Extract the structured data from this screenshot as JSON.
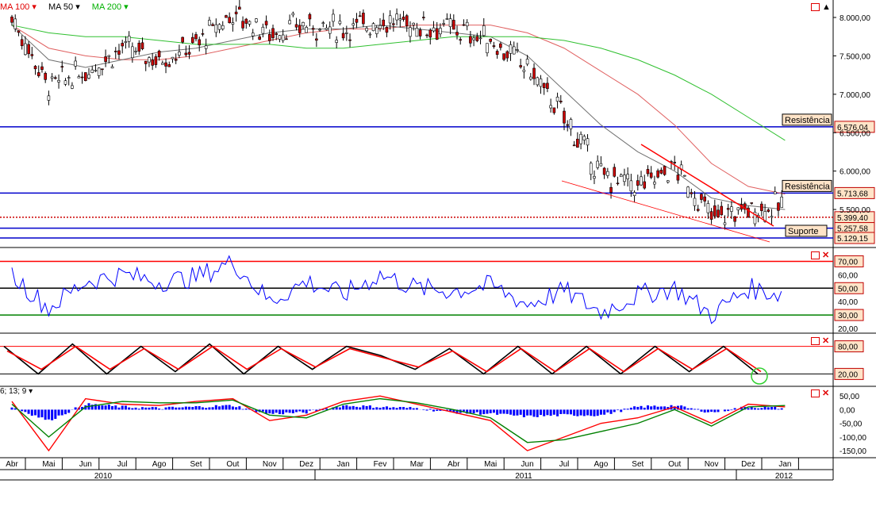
{
  "legend": {
    "ma100": "MA 100 ▾",
    "ma50": "MA 50 ▾",
    "ma200": "MA 200 ▾",
    "macd_params": "6; 13; 9 ▾"
  },
  "price_axis": {
    "ticks": [
      "8.000,00",
      "7.500,00",
      "7.000,00",
      "6.500,00",
      "6.000,00",
      "5.500,00"
    ],
    "levels": [
      {
        "name": "Resistência",
        "value": "6.576,04",
        "num": 6576.04,
        "color": "#0000cc"
      },
      {
        "name": "Resistência",
        "value": "5.713,68",
        "num": 5713.68,
        "color": "#0000cc"
      },
      {
        "name": "",
        "value": "5.399,40",
        "num": 5399.4,
        "color": "#cc0000"
      },
      {
        "name": "",
        "value": "5.257,58",
        "num": 5257.58,
        "color": "#0000cc"
      },
      {
        "name": "Suporte",
        "value": "5.129,15",
        "num": 5129.15,
        "color": "#0000cc"
      }
    ]
  },
  "rsi_axis": {
    "ticks": [
      "70,00",
      "60,00",
      "50,00",
      "40,00",
      "30,00",
      "20,00"
    ],
    "boxed": [
      "70,00",
      "50,00",
      "30,00"
    ]
  },
  "stoch_axis": {
    "ticks": [
      "80,00",
      "20,00"
    ]
  },
  "macd_axis": {
    "ticks": [
      "50,00",
      "0,00",
      "-50,00",
      "-100,00",
      "-150,00"
    ]
  },
  "time_axis": {
    "months": [
      "Abr",
      "Mai",
      "Jun",
      "Jul",
      "Ago",
      "Set",
      "Out",
      "Nov",
      "Dez",
      "Jan",
      "Fev",
      "Mar",
      "Abr",
      "Mai",
      "Jun",
      "Jul",
      "Ago",
      "Set",
      "Out",
      "Nov",
      "Dez",
      "Jan"
    ],
    "years": [
      "2010",
      "2011",
      "2012"
    ]
  },
  "colors": {
    "price_axis_bg": "#ffffff",
    "level_blue": "#0000cc",
    "trend_red": "#ff0000",
    "ma100": "#e06060",
    "ma50": "#707070",
    "ma200": "#30c030",
    "rsi": "#0000ff",
    "histogram": "#0000ff",
    "stoch_k": "#000000",
    "stoch_d": "#ff0000",
    "macd_fast": "#ff0000",
    "macd_slow": "#008000"
  },
  "chart_data": [
    {
      "type": "line",
      "panel": "price",
      "x": [
        "2010-04",
        "2010-05",
        "2010-06",
        "2010-07",
        "2010-08",
        "2010-09",
        "2010-10",
        "2010-11",
        "2010-12",
        "2011-01",
        "2011-02",
        "2011-03",
        "2011-04",
        "2011-05",
        "2011-06",
        "2011-07",
        "2011-08",
        "2011-09",
        "2011-10",
        "2011-11",
        "2011-12",
        "2012-01"
      ],
      "series": [
        {
          "name": "",
          "values": [
            8000,
            7100,
            7300,
            7600,
            7450,
            7650,
            8050,
            7800,
            7900,
            7850,
            7950,
            7900,
            7850,
            7700,
            7350,
            6700,
            5950,
            5800,
            6050,
            5400,
            5500,
            5550
          ]
        },
        {
          "name": "MA 100",
          "values": [
            7900,
            7600,
            7500,
            7450,
            7450,
            7500,
            7600,
            7700,
            7800,
            7850,
            7850,
            7900,
            7900,
            7900,
            7800,
            7600,
            7300,
            7000,
            6600,
            6100,
            5800,
            5700
          ]
        },
        {
          "name": "MA 50",
          "values": [
            7900,
            7450,
            7350,
            7450,
            7550,
            7600,
            7700,
            7800,
            7850,
            7850,
            7900,
            7850,
            7800,
            7750,
            7500,
            7050,
            6600,
            6250,
            6000,
            5650,
            5550,
            5500
          ]
        },
        {
          "name": "MA 200",
          "values": [
            7900,
            7800,
            7750,
            7750,
            7700,
            7650,
            7650,
            7650,
            7600,
            7600,
            7650,
            7700,
            7750,
            7750,
            7750,
            7700,
            7600,
            7450,
            7250,
            7000,
            6700,
            6400
          ]
        }
      ],
      "ylim": [
        5100,
        8200
      ]
    },
    {
      "type": "line",
      "panel": "rsi",
      "x": [
        "2010-04",
        "2010-05",
        "2010-06",
        "2010-07",
        "2010-08",
        "2010-09",
        "2010-10",
        "2010-11",
        "2010-12",
        "2011-01",
        "2011-02",
        "2011-03",
        "2011-04",
        "2011-05",
        "2011-06",
        "2011-07",
        "2011-08",
        "2011-09",
        "2011-10",
        "2011-11",
        "2011-12",
        "2012-01"
      ],
      "series": [
        {
          "name": "",
          "values": [
            60,
            35,
            55,
            60,
            55,
            58,
            70,
            40,
            55,
            45,
            60,
            50,
            48,
            52,
            38,
            48,
            32,
            45,
            50,
            30,
            50,
            45
          ]
        }
      ],
      "ylim": [
        20,
        75
      ]
    },
    {
      "type": "line",
      "panel": "stochastic",
      "series": [
        {
          "name": "",
          "values": [
            80,
            20,
            85,
            20,
            80,
            25,
            85,
            20,
            80,
            30,
            80,
            60,
            30,
            75,
            20,
            80,
            20,
            80,
            20,
            80,
            25,
            80,
            20
          ]
        },
        {
          "name": "",
          "values": [
            70,
            30,
            80,
            30,
            75,
            30,
            80,
            30,
            75,
            35,
            75,
            55,
            35,
            70,
            25,
            75,
            25,
            75,
            25,
            75,
            30,
            75,
            25
          ]
        }
      ],
      "ylim": [
        0,
        100
      ]
    },
    {
      "type": "bar",
      "panel": "macd",
      "series": [
        {
          "name": "",
          "values": [
            30,
            -150,
            40,
            20,
            15,
            30,
            40,
            -40,
            -20,
            30,
            50,
            20,
            -10,
            -40,
            -150,
            -100,
            -50,
            -30,
            10,
            -50,
            20,
            10
          ]
        },
        {
          "name": "",
          "values": [
            20,
            -100,
            10,
            30,
            25,
            25,
            35,
            -20,
            -30,
            20,
            40,
            25,
            0,
            -30,
            -120,
            -110,
            -80,
            -50,
            0,
            -60,
            10,
            15
          ]
        },
        {
          "name": "",
          "values": [
            10,
            -40,
            20,
            10,
            5,
            10,
            15,
            -15,
            -10,
            15,
            10,
            5,
            -10,
            -15,
            -25,
            -20,
            -20,
            10,
            15,
            -10,
            10,
            5
          ]
        }
      ],
      "ylim": [
        -170,
        65
      ]
    }
  ]
}
